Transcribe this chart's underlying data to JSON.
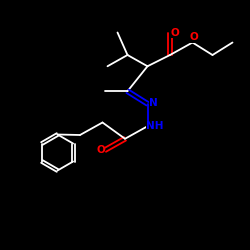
{
  "background_color": "#000000",
  "bond_color": "#ffffff",
  "O_color": "#ff0000",
  "N_color": "#0000ff",
  "figsize": [
    2.5,
    2.5
  ],
  "dpi": 100,
  "xlim": [
    0,
    10
  ],
  "ylim": [
    0,
    10
  ],
  "lw": 1.3
}
